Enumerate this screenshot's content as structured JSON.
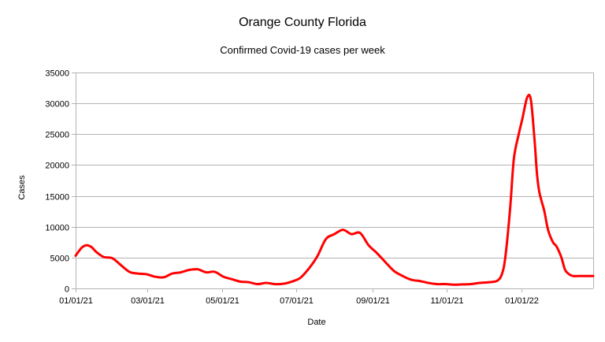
{
  "chart_data": {
    "type": "line",
    "title": "Orange County Florida",
    "subtitle": "Confirmed Covid-19 cases per week",
    "xlabel": "Date",
    "ylabel": "Cases",
    "xlim": [
      "2021-01-01",
      "2022-03-01"
    ],
    "ylim": [
      0,
      35000
    ],
    "yticks": [
      0,
      5000,
      10000,
      15000,
      20000,
      25000,
      30000,
      35000
    ],
    "ytick_labels": [
      "0",
      "5000",
      "10000",
      "15000",
      "20000",
      "25000",
      "30000",
      "35000"
    ],
    "xticks": [
      "2021-01-01",
      "2021-03-01",
      "2021-05-01",
      "2021-07-01",
      "2021-09-01",
      "2021-11-01",
      "2022-01-01"
    ],
    "xtick_labels": [
      "01/01/21",
      "03/01/21",
      "05/01/21",
      "07/01/21",
      "09/01/21",
      "11/01/21",
      "01/01/22"
    ],
    "grid": true,
    "legend": "none",
    "series": [
      {
        "color": "#ff0000",
        "x": [
          "2021-01-01",
          "2021-01-06",
          "2021-01-10",
          "2021-01-14",
          "2021-01-18",
          "2021-01-24",
          "2021-01-31",
          "2021-02-07",
          "2021-02-14",
          "2021-02-21",
          "2021-02-28",
          "2021-03-07",
          "2021-03-14",
          "2021-03-21",
          "2021-03-28",
          "2021-04-04",
          "2021-04-11",
          "2021-04-18",
          "2021-04-25",
          "2021-05-02",
          "2021-05-09",
          "2021-05-16",
          "2021-05-23",
          "2021-05-30",
          "2021-06-06",
          "2021-06-13",
          "2021-06-20",
          "2021-06-27",
          "2021-07-04",
          "2021-07-11",
          "2021-07-18",
          "2021-07-25",
          "2021-08-01",
          "2021-08-08",
          "2021-08-15",
          "2021-08-22",
          "2021-08-29",
          "2021-09-05",
          "2021-09-12",
          "2021-09-19",
          "2021-09-26",
          "2021-10-03",
          "2021-10-10",
          "2021-10-17",
          "2021-10-24",
          "2021-10-31",
          "2021-11-07",
          "2021-11-14",
          "2021-11-21",
          "2021-11-28",
          "2021-12-05",
          "2021-12-12",
          "2021-12-16",
          "2021-12-19",
          "2021-12-23",
          "2021-12-26",
          "2021-12-30",
          "2022-01-02",
          "2022-01-06",
          "2022-01-09",
          "2022-01-12",
          "2022-01-14",
          "2022-01-16",
          "2022-01-20",
          "2022-01-23",
          "2022-01-27",
          "2022-01-30",
          "2022-02-03",
          "2022-02-06",
          "2022-02-10",
          "2022-02-13",
          "2022-02-17",
          "2022-02-20",
          "2022-02-24",
          "2022-03-01"
        ],
        "y": [
          5300,
          6600,
          7000,
          6700,
          5900,
          5100,
          4900,
          3800,
          2700,
          2400,
          2300,
          1900,
          1800,
          2400,
          2600,
          3000,
          3100,
          2600,
          2700,
          1900,
          1500,
          1100,
          1000,
          700,
          900,
          700,
          750,
          1100,
          1700,
          3200,
          5200,
          8000,
          8800,
          9500,
          8800,
          9000,
          7000,
          5700,
          4200,
          2800,
          2000,
          1400,
          1200,
          900,
          700,
          700,
          600,
          650,
          700,
          900,
          1000,
          1200,
          2200,
          5000,
          13000,
          21000,
          25000,
          27500,
          31000,
          30500,
          24000,
          18500,
          15500,
          12500,
          9500,
          7500,
          6800,
          5000,
          3000,
          2200,
          2000,
          2000,
          2000,
          2000,
          2000
        ]
      }
    ]
  }
}
